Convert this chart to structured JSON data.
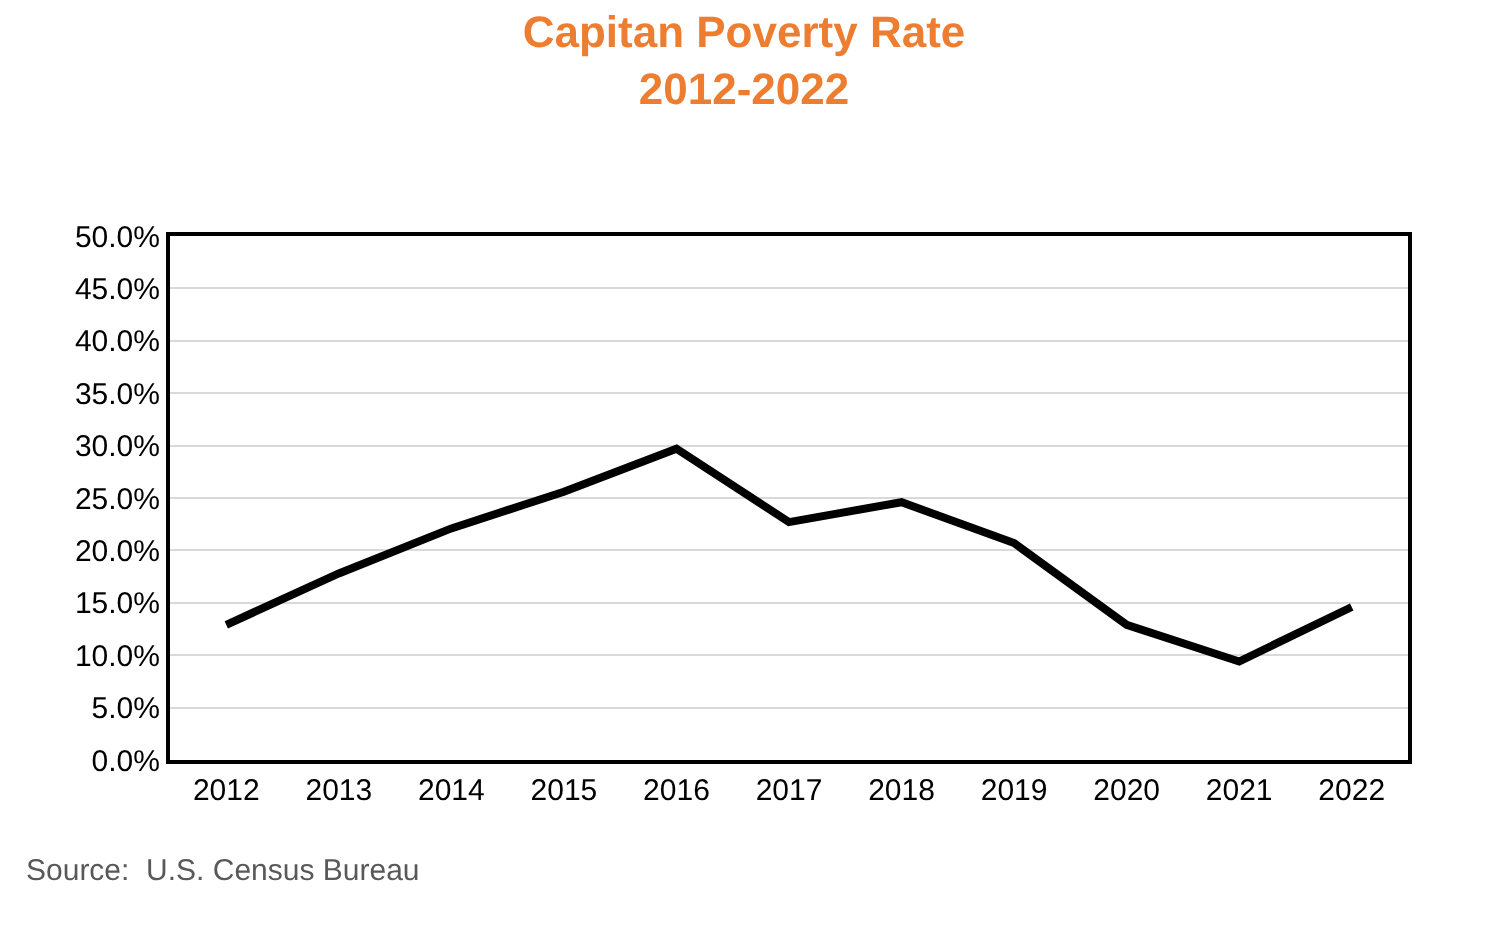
{
  "chart_data": {
    "type": "line",
    "title": "Capitan Poverty Rate\n2012-2022",
    "categories": [
      "2012",
      "2013",
      "2014",
      "2015",
      "2016",
      "2017",
      "2018",
      "2019",
      "2020",
      "2021",
      "2022"
    ],
    "series": [
      {
        "color": "#000000",
        "values": [
          12.9,
          17.8,
          22.1,
          25.6,
          29.7,
          22.7,
          24.6,
          20.7,
          12.9,
          9.4,
          14.6
        ]
      }
    ],
    "ylim": [
      0,
      50
    ],
    "yticks": [
      {
        "value": 0,
        "label": "0.0%"
      },
      {
        "value": 5,
        "label": "5.0%"
      },
      {
        "value": 10,
        "label": "10.0%"
      },
      {
        "value": 15,
        "label": "15.0%"
      },
      {
        "value": 20,
        "label": "20.0%"
      },
      {
        "value": 25,
        "label": "25.0%"
      },
      {
        "value": 30,
        "label": "30.0%"
      },
      {
        "value": 35,
        "label": "35.0%"
      },
      {
        "value": 40,
        "label": "40.0%"
      },
      {
        "value": 45,
        "label": "45.0%"
      },
      {
        "value": 50,
        "label": "50.0%"
      }
    ],
    "grid": "y",
    "marker": "none",
    "line_style": "solid",
    "annotations": [
      "Source:  U.S. Census Bureau"
    ]
  }
}
